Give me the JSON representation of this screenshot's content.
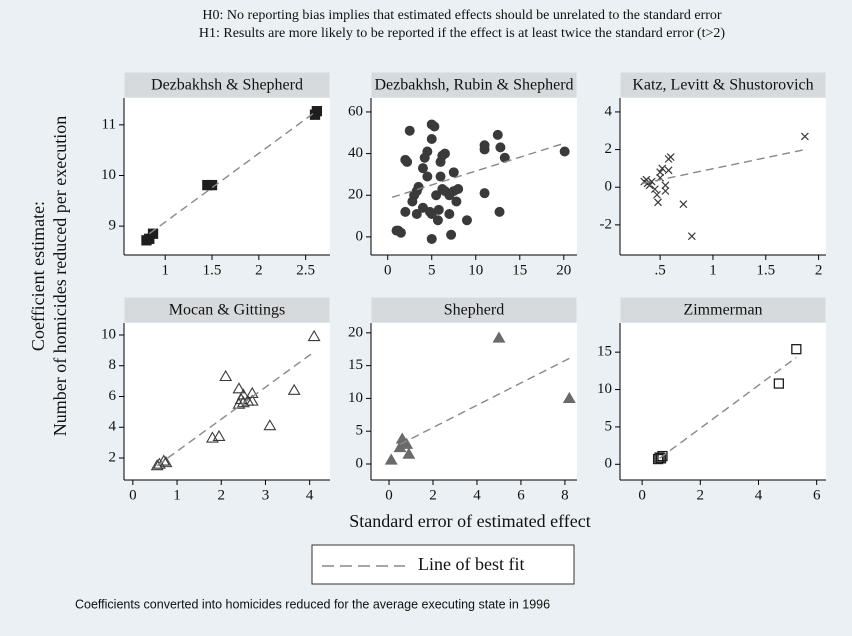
{
  "figure": {
    "hypotheses": [
      "H0: No reporting bias implies that estimated effects should be unrelated to the standard error",
      "H1: Results are more likely to be reported if the effect is at least twice the standard error (t>2)"
    ],
    "y_label": [
      "Coefficient estimate:",
      "Number of homicides reduced per execution"
    ],
    "x_label": "Standard error of estimated effect",
    "legend": "Line of best fit",
    "note": "Coefficients converted into homicides reduced for the average executing state in 1996"
  },
  "chart_data": [
    {
      "type": "scatter",
      "title": "Dezbakhsh & Shepherd",
      "marker": "square",
      "color": "#1e1e1e",
      "x": [
        0.8,
        0.83,
        0.87,
        1.45,
        1.5,
        2.6,
        2.62
      ],
      "y": [
        8.72,
        8.75,
        8.85,
        9.81,
        9.81,
        11.2,
        11.27
      ],
      "fit_x": [
        0.83,
        2.6
      ],
      "fit_y": [
        8.85,
        11.25
      ],
      "xlim": [
        0.56,
        2.76
      ],
      "ylim": [
        8.43,
        11.53
      ],
      "xticks": [
        1,
        1.5,
        2,
        2.5
      ],
      "yticks": [
        9,
        10,
        11
      ]
    },
    {
      "type": "scatter",
      "title": "Dezbakhsh, Rubin & Shepherd",
      "marker": "circle",
      "color": "#3a3a3a",
      "x": [
        1,
        1.5,
        1.2,
        2,
        2,
        2.2,
        2.5,
        2.8,
        3,
        3.3,
        3.5,
        3.3,
        4,
        4,
        4.2,
        4.5,
        4.5,
        4.8,
        5,
        5,
        5,
        5,
        5.3,
        5.5,
        5.7,
        5.8,
        6,
        6,
        6.2,
        6.2,
        6.5,
        6.5,
        7,
        7,
        7.2,
        7.5,
        7.5,
        7.8,
        8,
        9,
        11,
        11,
        11,
        12.5,
        12.7,
        12.8,
        13.3,
        20.1
      ],
      "y": [
        3,
        2,
        3,
        12,
        37,
        36,
        51,
        17,
        20,
        22,
        24,
        11,
        14,
        33,
        38,
        41,
        29,
        12,
        11,
        -1,
        47,
        54,
        53,
        20,
        8,
        13,
        29,
        36,
        39,
        23,
        40,
        22,
        20,
        11,
        1,
        31,
        22,
        17,
        23,
        8,
        44,
        21,
        42,
        49,
        12,
        43,
        38,
        41
      ],
      "fit_x": [
        0.5,
        20.1
      ],
      "fit_y": [
        19,
        45
      ],
      "xlim": [
        -1.9,
        21.5
      ],
      "ylim": [
        -8.7,
        66.7
      ],
      "xticks": [
        0,
        5,
        10,
        15,
        20
      ],
      "yticks": [
        0,
        20,
        40,
        60
      ]
    },
    {
      "type": "scatter",
      "title": "Katz, Levitt & Shustorovich",
      "marker": "x",
      "color": "#3a3a3a",
      "x": [
        0.35,
        0.37,
        0.38,
        0.4,
        0.42,
        0.45,
        0.47,
        0.48,
        0.5,
        0.5,
        0.52,
        0.55,
        0.55,
        0.58,
        0.6,
        0.58,
        0.72,
        0.8,
        1.87
      ],
      "y": [
        0.3,
        0.4,
        0.2,
        0.1,
        0.3,
        -0.1,
        -0.4,
        -0.8,
        0.8,
        0.5,
        1.0,
        -0.2,
        0.1,
        1.5,
        1.6,
        0.9,
        -0.9,
        -2.6,
        2.7
      ],
      "fit_x": [
        0.33,
        1.87
      ],
      "fit_y": [
        0.2,
        2.0
      ],
      "xlim": [
        0.12,
        2.07
      ],
      "ylim": [
        -3.6,
        4.74
      ],
      "xticks": [
        {
          "value": 0.5,
          "label": ".5"
        },
        1,
        1.5,
        2
      ],
      "yticks": [
        -2,
        0,
        2,
        4
      ]
    },
    {
      "type": "scatter",
      "title": "Mocan & Gittings",
      "marker": "triangle-open",
      "color": "#3a3a3a",
      "x": [
        0.55,
        0.6,
        0.7,
        0.75,
        1.8,
        1.95,
        2.1,
        2.4,
        2.4,
        2.45,
        2.5,
        2.5,
        2.6,
        2.7,
        2.7,
        3.1,
        3.65,
        4.1
      ],
      "y": [
        1.5,
        1.6,
        1.8,
        1.7,
        3.3,
        3.4,
        7.3,
        6.5,
        5.5,
        5.8,
        6.1,
        5.6,
        5.7,
        6.2,
        5.7,
        4.1,
        6.4,
        9.9
      ],
      "fit_x": [
        0.55,
        4.1
      ],
      "fit_y": [
        1.5,
        8.9
      ],
      "xlim": [
        -0.2,
        4.46
      ],
      "ylim": [
        0.57,
        10.78
      ],
      "xticks": [
        0,
        1,
        2,
        3,
        4
      ],
      "yticks": [
        2,
        4,
        6,
        8,
        10
      ]
    },
    {
      "type": "scatter",
      "title": "Shepherd",
      "marker": "triangle",
      "color": "#6a6a6a",
      "x": [
        0.1,
        0.5,
        0.6,
        0.7,
        0.8,
        0.9,
        5,
        8.2
      ],
      "y": [
        0.6,
        2.5,
        3.8,
        3.2,
        3.0,
        1.5,
        19.2,
        10
      ],
      "fit_x": [
        0.5,
        8.2
      ],
      "fit_y": [
        3,
        16.1
      ],
      "xlim": [
        -0.82,
        8.55
      ],
      "ylim": [
        -2.44,
        21.5
      ],
      "xticks": [
        0,
        2,
        4,
        6,
        8
      ],
      "yticks": [
        0,
        5,
        10,
        15,
        20
      ]
    },
    {
      "type": "scatter",
      "title": "Zimmerman",
      "marker": "square-open",
      "color": "#1e1e1e",
      "x": [
        0.55,
        0.6,
        0.65,
        0.7,
        4.7,
        5.3
      ],
      "y": [
        0.7,
        0.9,
        0.8,
        1.1,
        10.8,
        15.4
      ],
      "fit_x": [
        0.6,
        5.3
      ],
      "fit_y": [
        0.8,
        14.3
      ],
      "xlim": [
        -0.76,
        6.32
      ],
      "ylim": [
        -2.1,
        18.9
      ],
      "xticks": [
        0,
        2,
        4,
        6
      ],
      "yticks": [
        0,
        5,
        10,
        15
      ]
    }
  ]
}
